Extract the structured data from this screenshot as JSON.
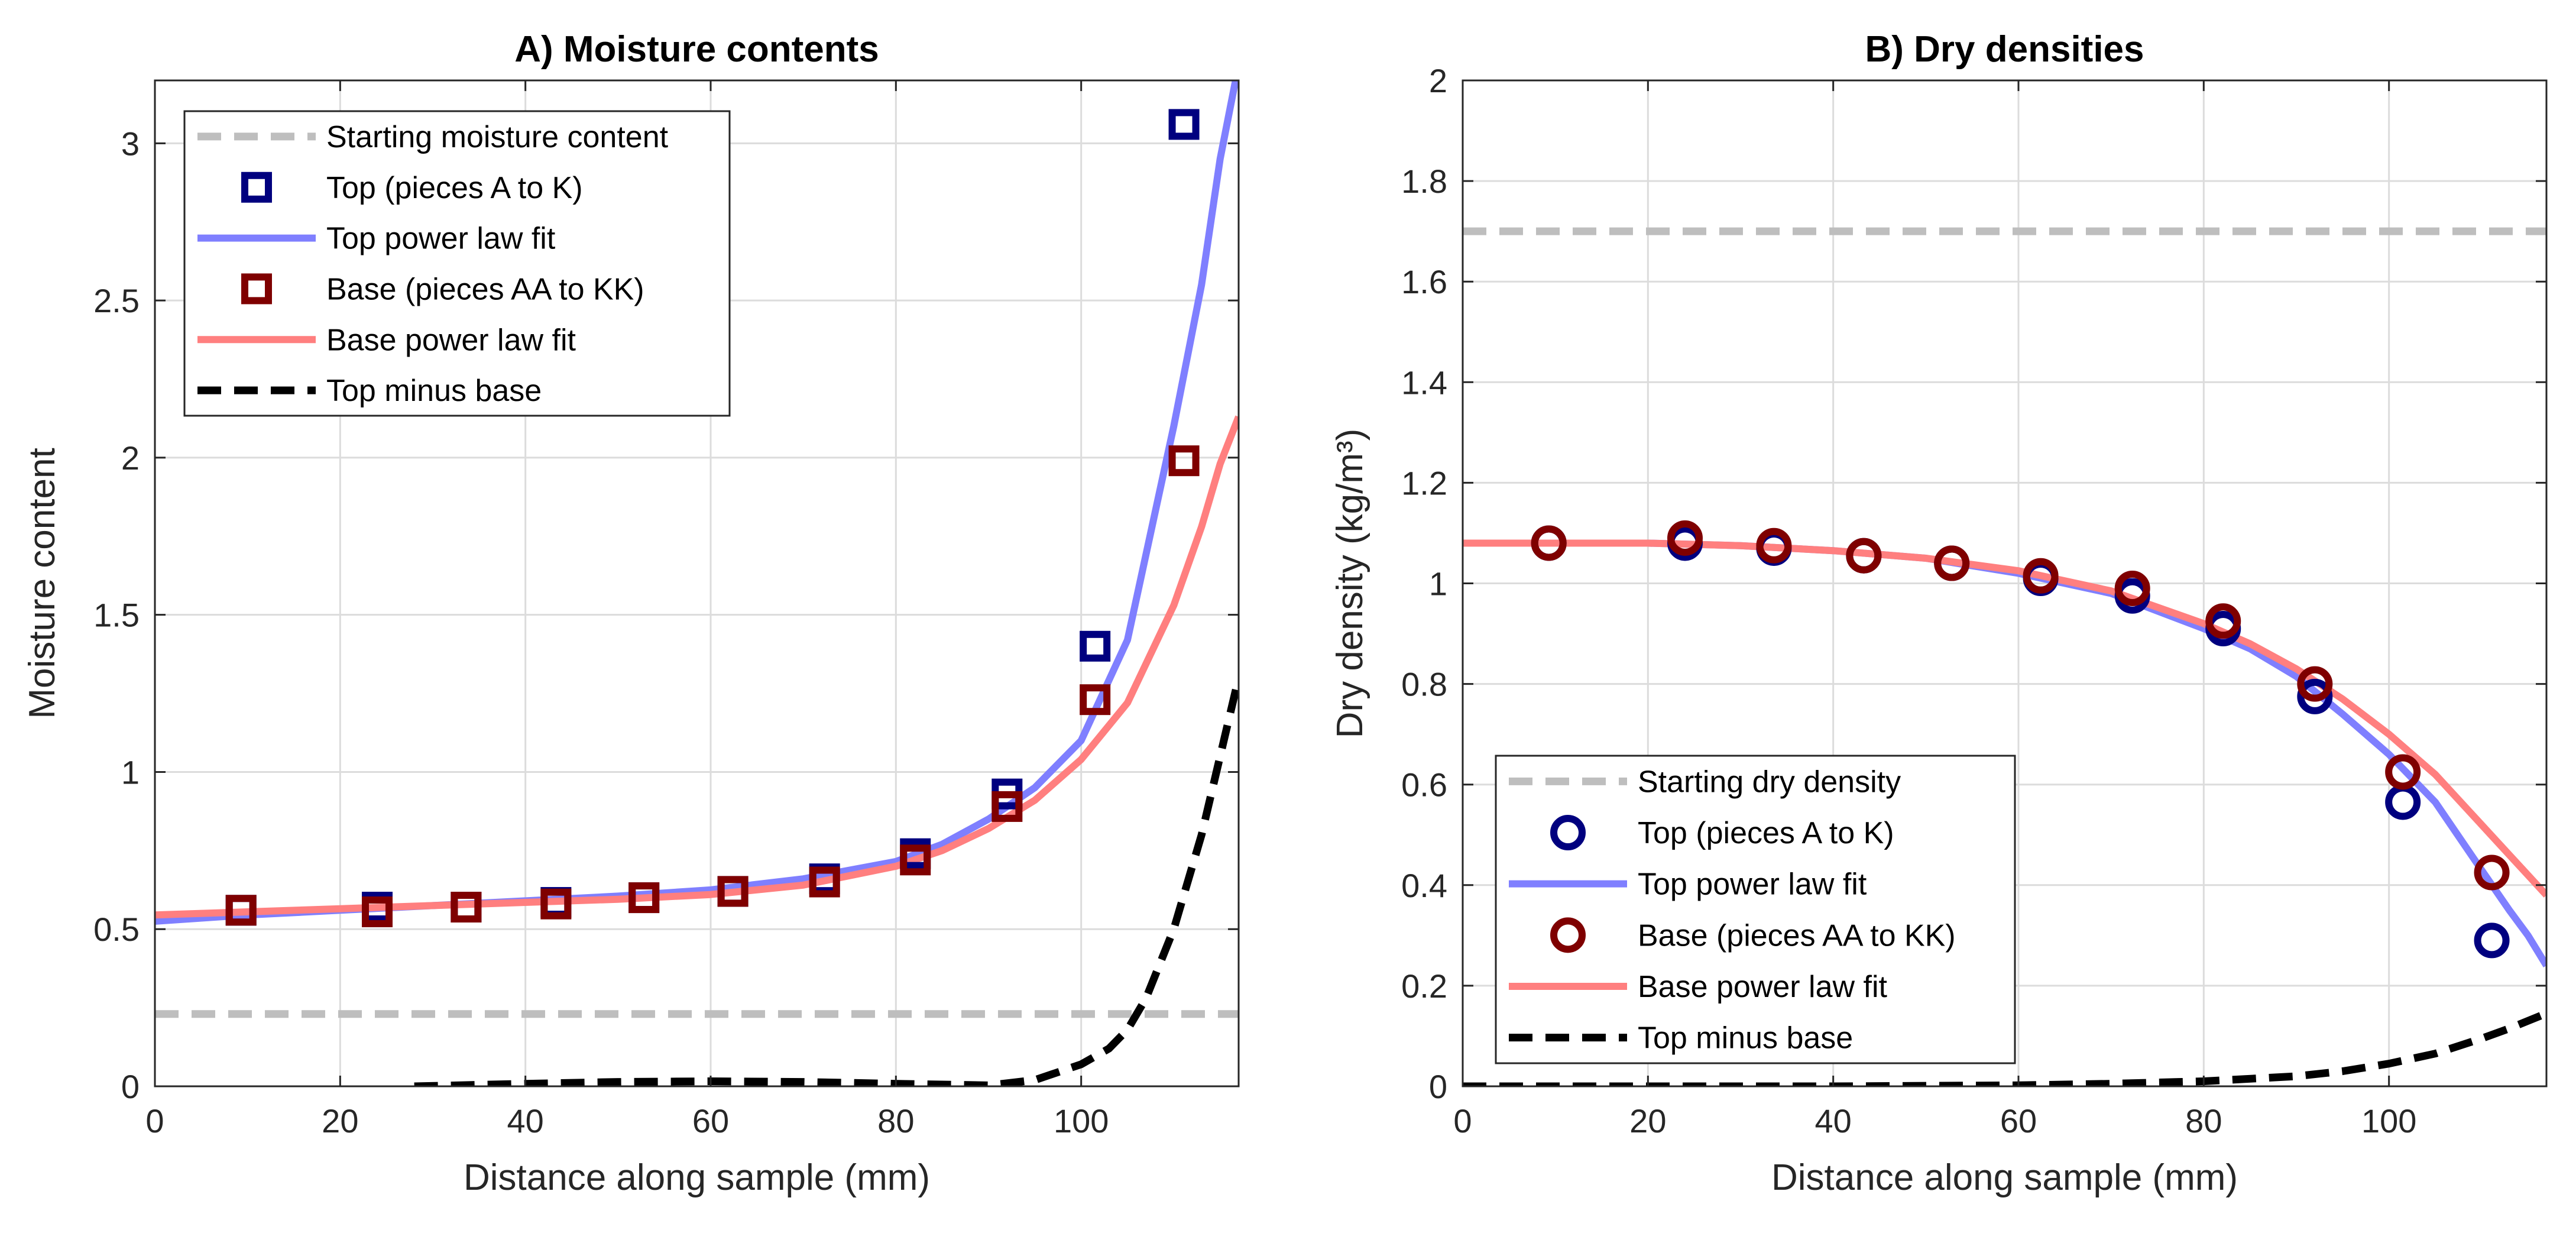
{
  "figure": {
    "background": "#ffffff",
    "grid_color": "#dcdcdc",
    "axis_color": "#262626"
  },
  "chart_data": [
    {
      "type": "line",
      "title": "A) Moisture contents",
      "xlabel": "Distance along sample (mm)",
      "ylabel": "Moisture content",
      "xlim": [
        0,
        117
      ],
      "ylim": [
        0,
        3.2
      ],
      "xticks": [
        0,
        20,
        40,
        60,
        80,
        100
      ],
      "yticks": [
        0,
        0.5,
        1,
        1.5,
        2,
        2.5,
        3
      ],
      "xtick_labels": [
        "0",
        "20",
        "40",
        "60",
        "80",
        "100"
      ],
      "ytick_labels": [
        "0",
        "0.5",
        "1",
        "1.5",
        "2",
        "2.5",
        "3"
      ],
      "grid": true,
      "legend_position": "top-left",
      "series": [
        {
          "name": "Starting moisture content",
          "kind": "hline",
          "y": 0.23,
          "color": "#bebebe",
          "dash": "dashed",
          "width": 13
        },
        {
          "name": "Top (pieces A to K)",
          "kind": "markers",
          "marker": "square",
          "color": "#00007f",
          "x": [
            9.3,
            24,
            33.6,
            43.3,
            52.8,
            62.4,
            72.3,
            82.1,
            92,
            101.5,
            111.1
          ],
          "y": [
            0.56,
            0.57,
            0.57,
            0.585,
            0.6,
            0.62,
            0.66,
            0.74,
            0.93,
            1.4,
            3.06
          ]
        },
        {
          "name": "Top power law fit",
          "kind": "line",
          "color": "#7f7fff",
          "width": 12,
          "x": [
            0,
            10,
            20,
            30,
            40,
            50,
            60,
            70,
            80,
            85,
            90,
            95,
            100,
            105,
            110,
            113,
            115,
            117
          ],
          "y": [
            0.525,
            0.545,
            0.56,
            0.575,
            0.59,
            0.605,
            0.625,
            0.66,
            0.715,
            0.77,
            0.85,
            0.95,
            1.1,
            1.42,
            2.1,
            2.55,
            2.95,
            3.25
          ]
        },
        {
          "name": "Base (pieces AA to KK)",
          "kind": "markers",
          "marker": "square",
          "color": "#7f0000",
          "x": [
            9.3,
            24,
            33.6,
            43.3,
            52.8,
            62.4,
            72.3,
            82.1,
            92,
            101.5,
            111.1
          ],
          "y": [
            0.56,
            0.555,
            0.57,
            0.58,
            0.6,
            0.62,
            0.65,
            0.72,
            0.89,
            1.23,
            1.99
          ]
        },
        {
          "name": "Base power law fit",
          "kind": "line",
          "color": "#ff7f7f",
          "width": 12,
          "x": [
            0,
            10,
            20,
            30,
            40,
            50,
            60,
            70,
            80,
            85,
            90,
            95,
            100,
            105,
            110,
            113,
            115,
            117
          ],
          "y": [
            0.545,
            0.555,
            0.565,
            0.575,
            0.585,
            0.595,
            0.61,
            0.64,
            0.7,
            0.75,
            0.82,
            0.91,
            1.04,
            1.22,
            1.53,
            1.78,
            1.98,
            2.13
          ]
        },
        {
          "name": "Top minus base",
          "kind": "line",
          "color": "#000000",
          "dash": "dashed",
          "width": 13,
          "x": [
            28,
            40,
            50,
            60,
            70,
            80,
            90,
            95,
            100,
            103,
            105,
            107,
            110,
            113,
            115,
            117
          ],
          "y": [
            0.0,
            0.008,
            0.014,
            0.016,
            0.014,
            0.008,
            0.003,
            0.02,
            0.07,
            0.12,
            0.18,
            0.28,
            0.5,
            0.8,
            1.05,
            1.3
          ]
        }
      ]
    },
    {
      "type": "line",
      "title": "B) Dry densities",
      "xlabel": "Distance along sample (mm)",
      "ylabel": "Dry density (kg/m³)",
      "xlim": [
        0,
        117
      ],
      "ylim": [
        0,
        2
      ],
      "xticks": [
        0,
        20,
        40,
        60,
        80,
        100
      ],
      "yticks": [
        0,
        0.2,
        0.4,
        0.6,
        0.8,
        1,
        1.2,
        1.4,
        1.6,
        1.8,
        2
      ],
      "xtick_labels": [
        "0",
        "20",
        "40",
        "60",
        "80",
        "100"
      ],
      "ytick_labels": [
        "0",
        "0.2",
        "0.4",
        "0.6",
        "0.8",
        "1",
        "1.2",
        "1.4",
        "1.6",
        "1.8",
        "2"
      ],
      "grid": true,
      "legend_position": "bottom-left",
      "series": [
        {
          "name": "Starting dry density",
          "kind": "hline",
          "y": 1.7,
          "color": "#bebebe",
          "dash": "dashed",
          "width": 13
        },
        {
          "name": "Top (pieces A to K)",
          "kind": "markers",
          "marker": "circle",
          "color": "#00007f",
          "x": [
            9.3,
            24,
            33.6,
            43.3,
            52.8,
            62.4,
            72.3,
            82.1,
            92,
            101.5,
            111.1
          ],
          "y": [
            1.08,
            1.08,
            1.07,
            1.055,
            1.04,
            1.01,
            0.975,
            0.91,
            0.775,
            0.565,
            0.29
          ]
        },
        {
          "name": "Top power law fit",
          "kind": "line",
          "color": "#7f7fff",
          "width": 12,
          "x": [
            0,
            10,
            20,
            30,
            40,
            50,
            60,
            70,
            80,
            85,
            90,
            95,
            100,
            105,
            110,
            113,
            115,
            117
          ],
          "y": [
            1.08,
            1.08,
            1.08,
            1.075,
            1.065,
            1.05,
            1.02,
            0.98,
            0.91,
            0.87,
            0.815,
            0.74,
            0.66,
            0.565,
            0.43,
            0.35,
            0.3,
            0.24
          ]
        },
        {
          "name": "Base (pieces AA to KK)",
          "kind": "markers",
          "marker": "circle",
          "color": "#7f0000",
          "x": [
            9.3,
            24,
            33.6,
            43.3,
            52.8,
            62.4,
            72.3,
            82.1,
            92,
            101.5,
            111.1
          ],
          "y": [
            1.08,
            1.09,
            1.075,
            1.055,
            1.04,
            1.015,
            0.99,
            0.925,
            0.8,
            0.625,
            0.425
          ]
        },
        {
          "name": "Base power law fit",
          "kind": "line",
          "color": "#ff7f7f",
          "width": 12,
          "x": [
            0,
            10,
            20,
            30,
            40,
            50,
            60,
            70,
            80,
            85,
            90,
            95,
            100,
            105,
            110,
            113,
            115,
            117
          ],
          "y": [
            1.08,
            1.08,
            1.08,
            1.075,
            1.065,
            1.05,
            1.025,
            0.985,
            0.92,
            0.88,
            0.83,
            0.77,
            0.7,
            0.62,
            0.52,
            0.46,
            0.42,
            0.38
          ]
        },
        {
          "name": "Top minus base",
          "kind": "line",
          "color": "#000000",
          "dash": "dashed",
          "width": 13,
          "x": [
            0,
            20,
            40,
            60,
            70,
            80,
            90,
            95,
            100,
            105,
            110,
            113,
            115,
            117
          ],
          "y": [
            0.0,
            0.0,
            0.0,
            0.002,
            0.005,
            0.01,
            0.02,
            0.03,
            0.045,
            0.065,
            0.095,
            0.115,
            0.13,
            0.145
          ]
        }
      ]
    }
  ]
}
